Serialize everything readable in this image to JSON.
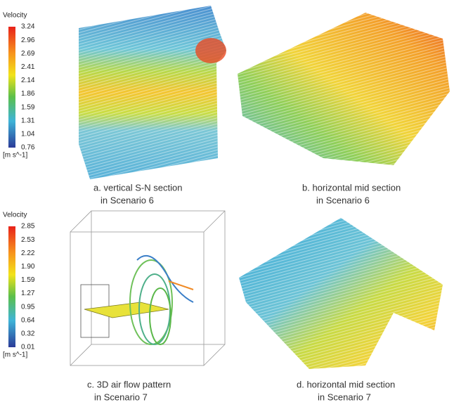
{
  "legends": [
    {
      "title": "Velocity",
      "ticks": [
        "3.24",
        "2.96",
        "2.69",
        "2.41",
        "2.14",
        "1.86",
        "1.59",
        "1.31",
        "1.04",
        "0.76"
      ],
      "unit": "[m s^-1]"
    },
    {
      "title": "Velocity",
      "ticks": [
        "2.85",
        "2.53",
        "2.22",
        "1.90",
        "1.59",
        "1.27",
        "0.95",
        "0.64",
        "0.32",
        "0.01"
      ],
      "unit": "[m s^-1]"
    }
  ],
  "panels": [
    {
      "caption": [
        "a. vertical S-N section",
        "in Scenario 6"
      ]
    },
    {
      "caption": [
        "b. horizontal mid section",
        "in Scenario 6"
      ]
    },
    {
      "caption": [
        "c. 3D air flow pattern",
        "in Scenario 7"
      ]
    },
    {
      "caption": [
        "d. horizontal mid section",
        "in Scenario 7"
      ]
    }
  ]
}
